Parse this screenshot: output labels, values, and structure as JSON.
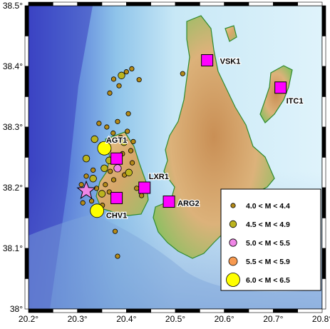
{
  "map": {
    "lon_ticks": [
      "20.2°",
      "20.3°",
      "20.4°",
      "20.5°",
      "20.6°",
      "20.7°",
      "20.8°"
    ],
    "lat_ticks": [
      "38°",
      "38.1°",
      "38.2°",
      "38.3°",
      "38.4°",
      "38.5°"
    ],
    "lon_range": [
      20.2,
      20.8
    ],
    "lat_range": [
      38.0,
      38.5
    ]
  },
  "stations": [
    {
      "code": "VSK1",
      "lon": 20.565,
      "lat": 38.41
    },
    {
      "code": "ITC1",
      "lon": 20.715,
      "lat": 38.365
    },
    {
      "code": "AGT1",
      "lon": 20.38,
      "lat": 38.248
    },
    {
      "code": "LXR1",
      "lon": 20.437,
      "lat": 38.2
    },
    {
      "code": "CHV1",
      "lon": 20.38,
      "lat": 38.183
    },
    {
      "code": "ARG2",
      "lon": 20.487,
      "lat": 38.177
    }
  ],
  "mainshock": {
    "label": "mainshock-star",
    "lon": 20.318,
    "lat": 38.195
  },
  "legend": {
    "items": [
      {
        "label": "4.0 < M < 4.4",
        "color": "#b48a18"
      },
      {
        "label": "4.5 < M < 4.9",
        "color": "#bcb41e"
      },
      {
        "label": "5.0 < M < 5.5",
        "color": "#ef86e6"
      },
      {
        "label": "5.5 < M < 5.9",
        "color": "#f79a50"
      },
      {
        "label": "6.0 < M < 6.5",
        "color": "#ffff00"
      }
    ]
  },
  "events": [
    {
      "lon": 20.355,
      "lat": 38.265,
      "mag_class": 5
    },
    {
      "lon": 20.34,
      "lat": 38.162,
      "mag_class": 5
    },
    {
      "lon": 20.382,
      "lat": 38.232,
      "mag_class": 3
    },
    {
      "lon": 20.355,
      "lat": 38.232,
      "mag_class": 2
    },
    {
      "lon": 20.332,
      "lat": 38.215,
      "mag_class": 2
    },
    {
      "lon": 20.405,
      "lat": 38.225,
      "mag_class": 2
    },
    {
      "lon": 20.318,
      "lat": 38.248,
      "mag_class": 2
    },
    {
      "lon": 20.395,
      "lat": 38.275,
      "mag_class": 2
    },
    {
      "lon": 20.39,
      "lat": 38.385,
      "mag_class": 2
    },
    {
      "lon": 20.365,
      "lat": 38.245,
      "mag_class": 2
    },
    {
      "lon": 20.35,
      "lat": 38.19,
      "mag_class": 2
    },
    {
      "lon": 20.335,
      "lat": 38.28,
      "mag_class": 2
    },
    {
      "lon": 20.36,
      "lat": 38.3,
      "mag_class": 1
    },
    {
      "lon": 20.373,
      "lat": 38.29,
      "mag_class": 1
    },
    {
      "lon": 20.388,
      "lat": 38.283,
      "mag_class": 1
    },
    {
      "lon": 20.402,
      "lat": 38.293,
      "mag_class": 1
    },
    {
      "lon": 20.414,
      "lat": 38.276,
      "mag_class": 1
    },
    {
      "lon": 20.349,
      "lat": 38.271,
      "mag_class": 1
    },
    {
      "lon": 20.364,
      "lat": 38.262,
      "mag_class": 1
    },
    {
      "lon": 20.392,
      "lat": 38.256,
      "mag_class": 1
    },
    {
      "lon": 20.412,
      "lat": 38.241,
      "mag_class": 1
    },
    {
      "lon": 20.367,
      "lat": 38.227,
      "mag_class": 1
    },
    {
      "lon": 20.396,
      "lat": 38.221,
      "mag_class": 1
    },
    {
      "lon": 20.332,
      "lat": 38.229,
      "mag_class": 1
    },
    {
      "lon": 20.318,
      "lat": 38.219,
      "mag_class": 1
    },
    {
      "lon": 20.308,
      "lat": 38.205,
      "mag_class": 1
    },
    {
      "lon": 20.339,
      "lat": 38.199,
      "mag_class": 1
    },
    {
      "lon": 20.357,
      "lat": 38.205,
      "mag_class": 1
    },
    {
      "lon": 20.365,
      "lat": 38.193,
      "mag_class": 1
    },
    {
      "lon": 20.329,
      "lat": 38.178,
      "mag_class": 1
    },
    {
      "lon": 20.311,
      "lat": 38.175,
      "mag_class": 1
    },
    {
      "lon": 20.351,
      "lat": 38.171,
      "mag_class": 1
    },
    {
      "lon": 20.377,
      "lat": 38.128,
      "mag_class": 1
    },
    {
      "lon": 20.382,
      "lat": 38.087,
      "mag_class": 1
    },
    {
      "lon": 20.421,
      "lat": 38.199,
      "mag_class": 1
    },
    {
      "lon": 20.431,
      "lat": 38.187,
      "mag_class": 1
    },
    {
      "lon": 20.404,
      "lat": 38.322,
      "mag_class": 1
    },
    {
      "lon": 20.366,
      "lat": 38.356,
      "mag_class": 1
    },
    {
      "lon": 20.374,
      "lat": 38.379,
      "mag_class": 1
    },
    {
      "lon": 20.4,
      "lat": 38.391,
      "mag_class": 1
    },
    {
      "lon": 20.411,
      "lat": 38.396,
      "mag_class": 1
    },
    {
      "lon": 20.426,
      "lat": 38.378,
      "mag_class": 1
    },
    {
      "lon": 20.385,
      "lat": 38.368,
      "mag_class": 1
    },
    {
      "lon": 20.515,
      "lat": 38.388,
      "mag_class": 1
    },
    {
      "lon": 20.344,
      "lat": 38.306,
      "mag_class": 1
    },
    {
      "lon": 20.382,
      "lat": 38.309,
      "mag_class": 1
    },
    {
      "lon": 20.409,
      "lat": 38.261,
      "mag_class": 1
    },
    {
      "lon": 20.374,
      "lat": 38.213,
      "mag_class": 1
    }
  ]
}
